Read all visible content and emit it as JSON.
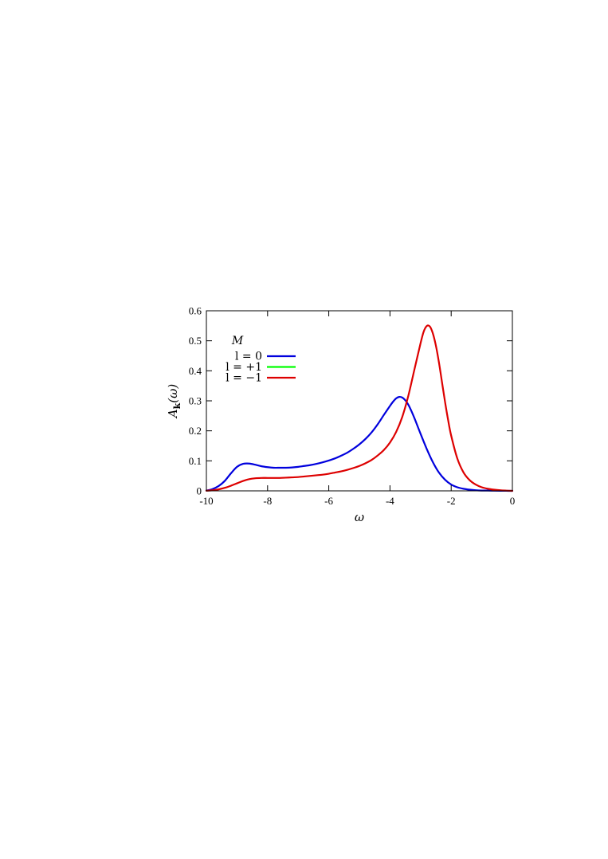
{
  "chart_data": {
    "type": "line",
    "title": "",
    "xlabel": "ω",
    "ylabel": "A_k(ω)",
    "xlim": [
      -10,
      0
    ],
    "ylim": [
      0,
      0.6
    ],
    "xticks": [
      -10,
      -8,
      -6,
      -4,
      -2,
      0
    ],
    "xtick_labels": [
      "-10",
      "-8",
      "-6",
      "-4",
      "-2",
      "0"
    ],
    "yticks": [
      0,
      0.1,
      0.2,
      0.3,
      0.4,
      0.5,
      0.6
    ],
    "ytick_labels": [
      "0",
      "0.1",
      "0.2",
      "0.3",
      "0.4",
      "0.5",
      "0.6"
    ],
    "grid": false,
    "legend": {
      "title": "M",
      "placement": "top-left",
      "entries": [
        "l = 0",
        "l = +1",
        "l = −1"
      ]
    },
    "series": [
      {
        "name": "l = 0",
        "color": "#0000dd",
        "x": [
          -10.0,
          -9.8,
          -9.6,
          -9.4,
          -9.2,
          -9.0,
          -8.8,
          -8.6,
          -8.4,
          -8.2,
          -8.0,
          -7.8,
          -7.6,
          -7.4,
          -7.2,
          -7.0,
          -6.8,
          -6.6,
          -6.4,
          -6.2,
          -6.0,
          -5.8,
          -5.6,
          -5.4,
          -5.2,
          -5.0,
          -4.8,
          -4.6,
          -4.4,
          -4.2,
          -4.0,
          -3.9,
          -3.8,
          -3.7,
          -3.6,
          -3.5,
          -3.4,
          -3.3,
          -3.2,
          -3.1,
          -3.0,
          -2.8,
          -2.6,
          -2.4,
          -2.2,
          -2.0,
          -1.8,
          -1.6,
          -1.4,
          -1.2,
          -1.0,
          -0.8,
          -0.6,
          -0.4,
          -0.2,
          0.0
        ],
        "y": [
          0.001,
          0.006,
          0.016,
          0.033,
          0.058,
          0.08,
          0.09,
          0.091,
          0.087,
          0.082,
          0.079,
          0.077,
          0.077,
          0.077,
          0.078,
          0.08,
          0.083,
          0.086,
          0.09,
          0.095,
          0.101,
          0.108,
          0.117,
          0.127,
          0.14,
          0.155,
          0.173,
          0.195,
          0.222,
          0.253,
          0.283,
          0.297,
          0.308,
          0.313,
          0.311,
          0.302,
          0.287,
          0.266,
          0.242,
          0.216,
          0.19,
          0.14,
          0.096,
          0.061,
          0.037,
          0.021,
          0.012,
          0.007,
          0.004,
          0.002,
          0.001,
          0.001,
          0.0005,
          0.0002,
          0.0001,
          0.0
        ]
      },
      {
        "name": "l = +1",
        "color": "#00ff00",
        "x": [],
        "y": []
      },
      {
        "name": "l = −1",
        "color": "#dd0000",
        "x": [
          -10.0,
          -9.8,
          -9.6,
          -9.4,
          -9.2,
          -9.0,
          -8.8,
          -8.6,
          -8.4,
          -8.2,
          -8.0,
          -7.8,
          -7.6,
          -7.4,
          -7.2,
          -7.0,
          -6.8,
          -6.6,
          -6.4,
          -6.2,
          -6.0,
          -5.8,
          -5.6,
          -5.4,
          -5.2,
          -5.0,
          -4.8,
          -4.6,
          -4.4,
          -4.2,
          -4.0,
          -3.8,
          -3.6,
          -3.4,
          -3.2,
          -3.0,
          -2.9,
          -2.8,
          -2.7,
          -2.6,
          -2.5,
          -2.4,
          -2.3,
          -2.2,
          -2.1,
          -2.0,
          -1.8,
          -1.6,
          -1.4,
          -1.2,
          -1.0,
          -0.8,
          -0.6,
          -0.4,
          -0.2,
          0.0
        ],
        "y": [
          0.0005,
          0.002,
          0.005,
          0.01,
          0.017,
          0.025,
          0.033,
          0.039,
          0.042,
          0.043,
          0.043,
          0.043,
          0.043,
          0.044,
          0.045,
          0.046,
          0.048,
          0.05,
          0.052,
          0.054,
          0.057,
          0.061,
          0.065,
          0.07,
          0.076,
          0.083,
          0.092,
          0.103,
          0.118,
          0.136,
          0.161,
          0.196,
          0.246,
          0.317,
          0.405,
          0.492,
          0.53,
          0.549,
          0.548,
          0.525,
          0.484,
          0.428,
          0.362,
          0.296,
          0.236,
          0.184,
          0.108,
          0.062,
          0.036,
          0.021,
          0.012,
          0.007,
          0.004,
          0.002,
          0.0008,
          0.0
        ]
      }
    ]
  }
}
